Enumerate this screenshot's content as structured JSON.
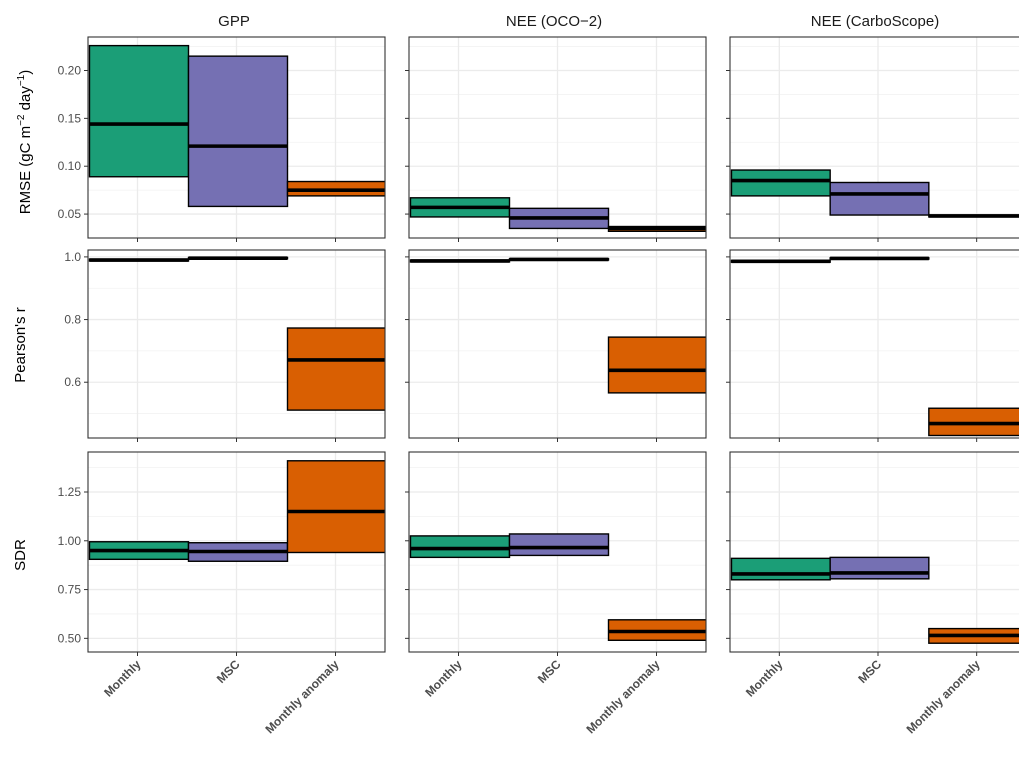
{
  "chart_data": {
    "type": "box",
    "categories": [
      "Monthly",
      "MSC",
      "Monthly anomaly"
    ],
    "category_colors": [
      "#1b9e77",
      "#7570b3",
      "#d95f02"
    ],
    "columns": [
      "GPP",
      "NEE (OCO−2)",
      "NEE (CarboScope)"
    ],
    "rows": [
      {
        "label_main": "RMSE  (gC  m",
        "label_sup1": "−2",
        "label_mid": " day",
        "label_sup2": "−1",
        "label_end": ")",
        "ylim": [
          0.025,
          0.235
        ],
        "ticks": [
          0.05,
          0.1,
          0.15,
          0.2
        ],
        "tick_labels": [
          "0.05",
          "0.10",
          "0.15",
          "0.20"
        ],
        "minor_ticks": [
          0.075,
          0.125,
          0.175,
          0.225
        ],
        "panels": [
          {
            "boxes": [
              {
                "q1": 0.089,
                "median": 0.144,
                "q3": 0.226
              },
              {
                "q1": 0.058,
                "median": 0.121,
                "q3": 0.215
              },
              {
                "q1": 0.069,
                "median": 0.075,
                "q3": 0.084
              }
            ]
          },
          {
            "boxes": [
              {
                "q1": 0.047,
                "median": 0.057,
                "q3": 0.067
              },
              {
                "q1": 0.035,
                "median": 0.046,
                "q3": 0.056
              },
              {
                "q1": 0.032,
                "median": 0.035,
                "q3": 0.037
              }
            ]
          },
          {
            "boxes": [
              {
                "q1": 0.069,
                "median": 0.085,
                "q3": 0.096
              },
              {
                "q1": 0.049,
                "median": 0.071,
                "q3": 0.083
              },
              {
                "q1": 0.047,
                "median": 0.048,
                "q3": 0.049
              }
            ]
          }
        ]
      },
      {
        "label": "Pearson's r",
        "ylim": [
          0.422,
          1.022
        ],
        "ticks": [
          0.6,
          0.8,
          1.0
        ],
        "tick_labels": [
          "0.6",
          "0.8",
          "1.0"
        ],
        "minor_ticks": [
          0.5,
          0.7,
          0.9
        ],
        "panels": [
          {
            "boxes": [
              {
                "q1": 0.987,
                "median": 0.99,
                "q3": 0.993
              },
              {
                "q1": 0.994,
                "median": 0.996,
                "q3": 0.998
              },
              {
                "q1": 0.511,
                "median": 0.671,
                "q3": 0.773
              }
            ]
          },
          {
            "boxes": [
              {
                "q1": 0.984,
                "median": 0.987,
                "q3": 0.99
              },
              {
                "q1": 0.99,
                "median": 0.992,
                "q3": 0.994
              },
              {
                "q1": 0.566,
                "median": 0.638,
                "q3": 0.744
              }
            ]
          },
          {
            "boxes": [
              {
                "q1": 0.983,
                "median": 0.986,
                "q3": 0.989
              },
              {
                "q1": 0.993,
                "median": 0.995,
                "q3": 0.997
              },
              {
                "q1": 0.43,
                "median": 0.468,
                "q3": 0.517
              }
            ]
          }
        ]
      },
      {
        "label": "SDR",
        "ylim": [
          0.43,
          1.455
        ],
        "ticks": [
          0.5,
          0.75,
          1.0,
          1.25
        ],
        "tick_labels": [
          "0.50",
          "0.75",
          "1.00",
          "1.25"
        ],
        "minor_ticks": [
          0.625,
          0.875,
          1.125,
          1.375
        ],
        "panels": [
          {
            "boxes": [
              {
                "q1": 0.905,
                "median": 0.95,
                "q3": 0.995
              },
              {
                "q1": 0.895,
                "median": 0.945,
                "q3": 0.99
              },
              {
                "q1": 0.94,
                "median": 1.15,
                "q3": 1.41
              }
            ]
          },
          {
            "boxes": [
              {
                "q1": 0.915,
                "median": 0.96,
                "q3": 1.025
              },
              {
                "q1": 0.925,
                "median": 0.965,
                "q3": 1.035
              },
              {
                "q1": 0.49,
                "median": 0.535,
                "q3": 0.595
              }
            ]
          },
          {
            "boxes": [
              {
                "q1": 0.8,
                "median": 0.83,
                "q3": 0.91
              },
              {
                "q1": 0.805,
                "median": 0.835,
                "q3": 0.915
              },
              {
                "q1": 0.475,
                "median": 0.515,
                "q3": 0.55
              }
            ]
          }
        ]
      }
    ],
    "grid": true
  }
}
